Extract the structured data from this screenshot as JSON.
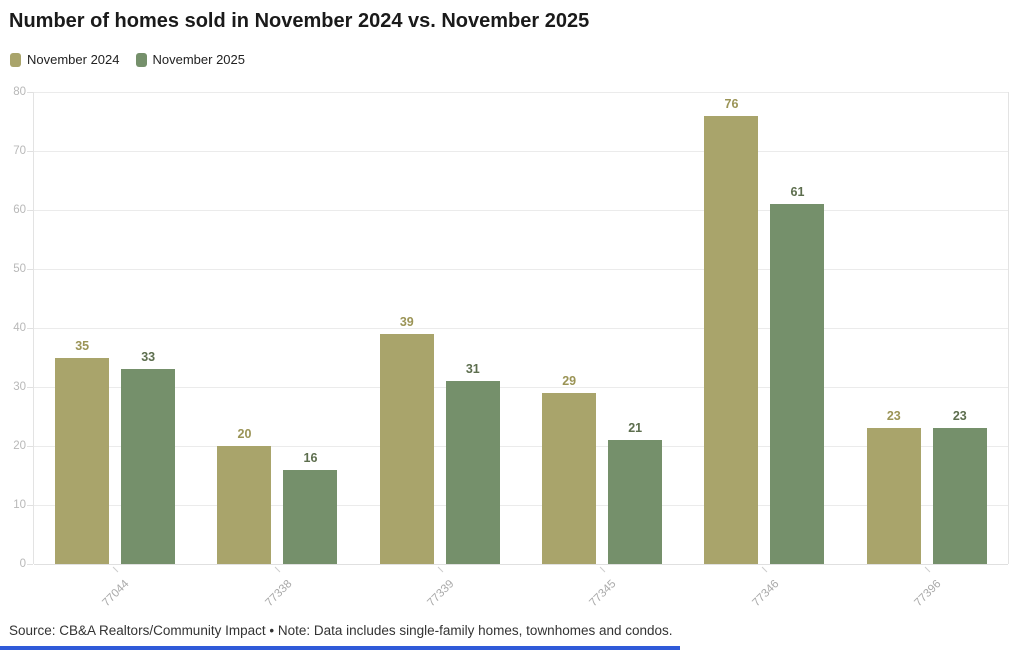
{
  "title": "Number of homes sold in November 2024 vs. November 2025",
  "legend": [
    {
      "label": "November 2024",
      "color": "#a9a46b"
    },
    {
      "label": "November 2025",
      "color": "#75906b"
    }
  ],
  "footer": "Source: CB&A Realtors/Community Impact • Note: Data includes single-family homes, townhomes and condos.",
  "colors": {
    "bar_2024": "#a9a46b",
    "bar_2025": "#75906b",
    "value_label_2024": "#9b9456",
    "value_label_2025": "#5d6e4e",
    "title_text": "#1a1a1a",
    "axis_text": "#a9a9a9",
    "ytick_text": "#b8b8b8",
    "gridline": "#ebebeb",
    "bottom_strip": "#2f5ad9"
  },
  "chart_data": {
    "type": "bar",
    "title": "Number of homes sold in November 2024 vs. November 2025",
    "categories": [
      "77044",
      "77338",
      "77339",
      "77345",
      "77346",
      "77396"
    ],
    "series": [
      {
        "name": "November 2024",
        "color": "#a9a46b",
        "label_color": "#9b9456",
        "values": [
          35,
          20,
          39,
          29,
          76,
          23
        ]
      },
      {
        "name": "November 2025",
        "color": "#75906b",
        "label_color": "#5d6e4e",
        "values": [
          33,
          16,
          31,
          21,
          61,
          23
        ]
      }
    ],
    "xlabel": "",
    "ylabel": "",
    "ylim": [
      0,
      80
    ],
    "yticks": [
      0,
      10,
      20,
      30,
      40,
      50,
      60,
      70,
      80
    ],
    "grid": true,
    "legend_position": "top-left",
    "value_labels": true
  }
}
